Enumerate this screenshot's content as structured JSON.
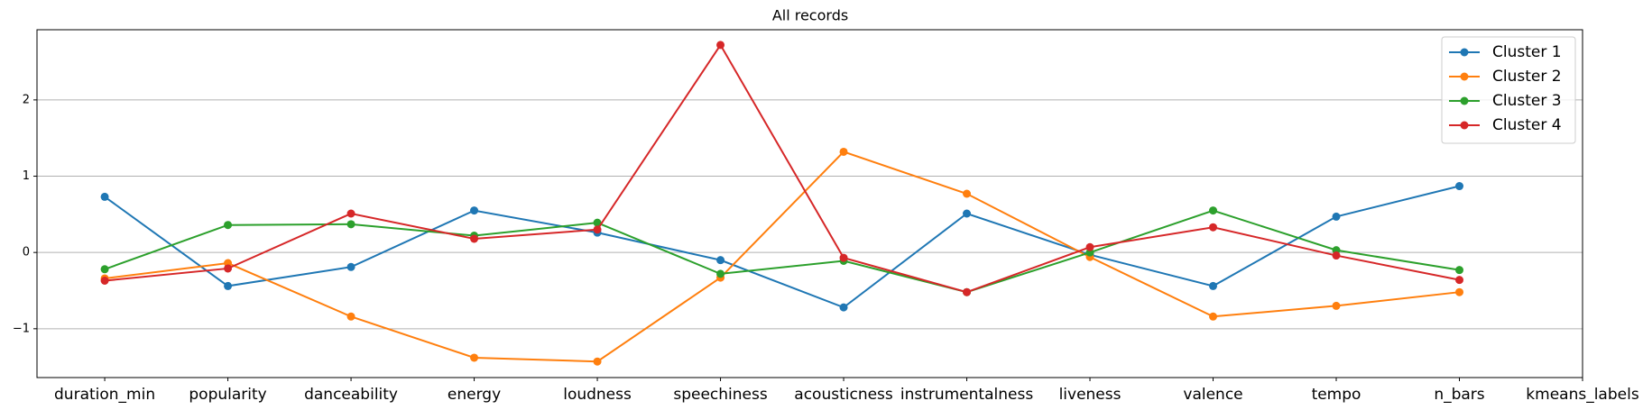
{
  "chart_data": {
    "type": "line",
    "title": "All records",
    "categories": [
      "duration_min",
      "popularity",
      "danceability",
      "energy",
      "loudness",
      "speechiness",
      "acousticness",
      "instrumentalness",
      "liveness",
      "valence",
      "tempo",
      "n_bars",
      "kmeans_labels"
    ],
    "series": [
      {
        "name": "Cluster 1",
        "color": "#1f77b4",
        "values": [
          0.73,
          -0.44,
          -0.19,
          0.55,
          0.26,
          -0.1,
          -0.72,
          0.51,
          -0.03,
          -0.44,
          0.47,
          0.87,
          null
        ]
      },
      {
        "name": "Cluster 2",
        "color": "#ff7f0e",
        "values": [
          -0.34,
          -0.14,
          -0.84,
          -1.38,
          -1.43,
          -0.33,
          1.32,
          0.77,
          -0.06,
          -0.84,
          -0.7,
          -0.52,
          null
        ]
      },
      {
        "name": "Cluster 3",
        "color": "#2ca02c",
        "values": [
          -0.22,
          0.36,
          0.37,
          0.22,
          0.39,
          -0.28,
          -0.11,
          -0.52,
          0.0,
          0.55,
          0.03,
          -0.23,
          null
        ]
      },
      {
        "name": "Cluster 4",
        "color": "#d62728",
        "values": [
          -0.37,
          -0.21,
          0.51,
          0.18,
          0.3,
          2.72,
          -0.07,
          -0.52,
          0.07,
          0.33,
          -0.04,
          -0.36,
          null
        ]
      }
    ],
    "ylim": [
      -1.64,
      2.92
    ],
    "yticks": [
      {
        "value": -1,
        "label": "−1"
      },
      0,
      1,
      2
    ],
    "grid": true,
    "legend": "upper right"
  }
}
